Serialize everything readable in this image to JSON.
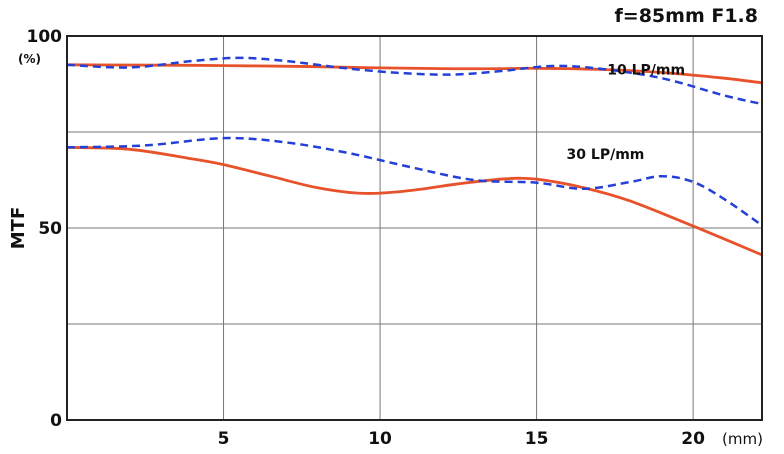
{
  "chart_data": {
    "type": "line",
    "title": "f=85mm F1.8",
    "xlabel": "(mm)",
    "ylabel": "MTF",
    "y_unit": "(%)",
    "xlim": [
      0,
      22.2
    ],
    "ylim": [
      0,
      100
    ],
    "x_ticks": [
      5,
      10,
      15,
      20
    ],
    "y_ticks": [
      0,
      50,
      100
    ],
    "grid": true,
    "annotations": [
      {
        "text": "10 LP/mm",
        "x": 18.5,
        "y": 90
      },
      {
        "text": "30 LP/mm",
        "x": 17.2,
        "y": 68
      }
    ],
    "series": [
      {
        "group": "10 LP/mm",
        "style": "solid",
        "color": "#e8522a",
        "points": [
          [
            0,
            92.5
          ],
          [
            3,
            92.4
          ],
          [
            5,
            92.3
          ],
          [
            8,
            92
          ],
          [
            10,
            91.7
          ],
          [
            12,
            91.5
          ],
          [
            14,
            91.5
          ],
          [
            15,
            91.6
          ],
          [
            17,
            91.3
          ],
          [
            19,
            90.5
          ],
          [
            21,
            89
          ],
          [
            22.2,
            87.8
          ]
        ]
      },
      {
        "group": "10 LP/mm",
        "style": "dashed",
        "color": "#2440d6",
        "points": [
          [
            0,
            92.5
          ],
          [
            2,
            91.8
          ],
          [
            4,
            93.5
          ],
          [
            5.5,
            94.3
          ],
          [
            7,
            93.5
          ],
          [
            9,
            91.5
          ],
          [
            11,
            90.2
          ],
          [
            12.5,
            90
          ],
          [
            14,
            91
          ],
          [
            15.5,
            92.2
          ],
          [
            17,
            91.5
          ],
          [
            19,
            89
          ],
          [
            21,
            84.5
          ],
          [
            22.2,
            82.3
          ]
        ]
      },
      {
        "group": "30 LP/mm",
        "style": "solid",
        "color": "#e8522a",
        "points": [
          [
            0,
            71
          ],
          [
            2,
            70.5
          ],
          [
            4,
            68
          ],
          [
            5,
            66.5
          ],
          [
            6.5,
            63.5
          ],
          [
            8,
            60.5
          ],
          [
            9.5,
            59
          ],
          [
            11,
            59.8
          ],
          [
            12.5,
            61.5
          ],
          [
            14,
            62.8
          ],
          [
            15,
            62.7
          ],
          [
            16.5,
            60.5
          ],
          [
            18,
            57
          ],
          [
            20,
            50.5
          ],
          [
            22.2,
            43
          ]
        ]
      },
      {
        "group": "30 LP/mm",
        "style": "dashed",
        "color": "#2440d6",
        "points": [
          [
            0,
            71
          ],
          [
            2.5,
            71.5
          ],
          [
            5,
            73.4
          ],
          [
            7,
            72.3
          ],
          [
            9,
            69.5
          ],
          [
            11,
            65.8
          ],
          [
            13,
            62.5
          ],
          [
            15,
            61.8
          ],
          [
            16.5,
            60.2
          ],
          [
            18,
            62
          ],
          [
            19,
            63.5
          ],
          [
            20,
            62
          ],
          [
            21,
            57.5
          ],
          [
            22.2,
            50.7
          ]
        ]
      }
    ]
  }
}
